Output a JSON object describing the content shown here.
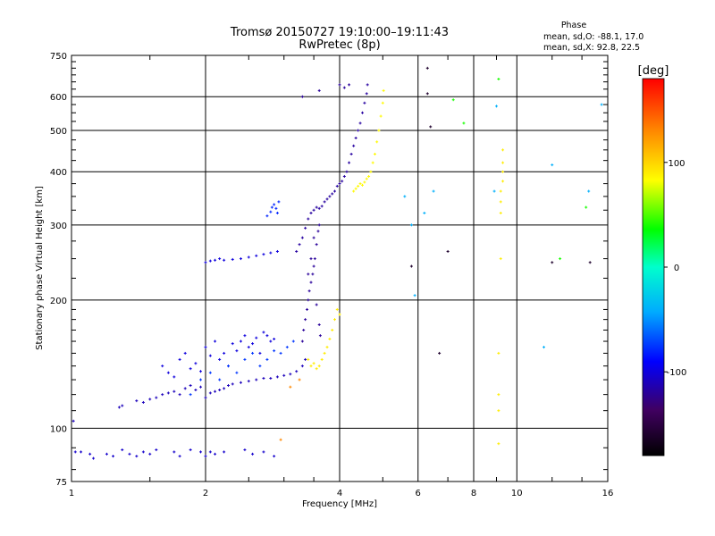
{
  "chart_data": {
    "type": "scatter",
    "title": "Tromsø 20150727 19:10:00–19:11:43",
    "subtitle": "RwPretec (8p)",
    "xlabel": "Frequency [MHz]",
    "ylabel": "Stationary phase Virtual Height [km]",
    "x_scale": "log",
    "y_scale": "log",
    "xlim": [
      1,
      16
    ],
    "ylim": [
      75,
      750
    ],
    "x_ticks": [
      1,
      2,
      4,
      6,
      8,
      10,
      16
    ],
    "y_ticks": [
      75,
      100,
      200,
      300,
      400,
      500,
      600,
      750
    ],
    "grid": true,
    "phase_stats": {
      "heading": "Phase",
      "line_o": "mean, sd,O: -88.1, 17.0",
      "line_x": "mean, sd,X:  92.8, 22.5"
    },
    "colorbar": {
      "label": "[deg]",
      "ticks": [
        "100",
        "0",
        "-100"
      ],
      "tick_values": [
        100,
        0,
        -100
      ],
      "range": [
        -180,
        180
      ]
    },
    "series": [
      {
        "phase_deg": -105,
        "points": [
          [
            1.02,
            88
          ],
          [
            1.05,
            88
          ],
          [
            1.1,
            87
          ],
          [
            1.12,
            85
          ],
          [
            1.2,
            87
          ],
          [
            1.24,
            86
          ],
          [
            1.3,
            89
          ],
          [
            1.35,
            87
          ],
          [
            1.4,
            86
          ],
          [
            1.45,
            88
          ],
          [
            1.5,
            87
          ],
          [
            1.55,
            89
          ],
          [
            1.7,
            88
          ],
          [
            1.75,
            86
          ],
          [
            1.85,
            89
          ],
          [
            1.95,
            88
          ],
          [
            2.0,
            86
          ],
          [
            2.05,
            88
          ],
          [
            2.1,
            87
          ],
          [
            2.2,
            88
          ],
          [
            2.45,
            89
          ],
          [
            2.55,
            87
          ],
          [
            2.7,
            88
          ],
          [
            2.85,
            86
          ]
        ]
      },
      {
        "phase_deg": -110,
        "points": [
          [
            1.01,
            104
          ],
          [
            1.28,
            112
          ],
          [
            1.3,
            113
          ],
          [
            1.4,
            116
          ],
          [
            1.45,
            115
          ],
          [
            1.5,
            117
          ],
          [
            1.55,
            118
          ],
          [
            1.6,
            120
          ],
          [
            1.65,
            121
          ],
          [
            1.7,
            122
          ],
          [
            1.75,
            120
          ],
          [
            1.8,
            124
          ],
          [
            1.85,
            126
          ],
          [
            1.9,
            123
          ],
          [
            1.95,
            125
          ],
          [
            2.0,
            118
          ],
          [
            2.05,
            121
          ],
          [
            2.1,
            122
          ],
          [
            2.15,
            123
          ],
          [
            2.2,
            124
          ],
          [
            2.25,
            126
          ],
          [
            2.3,
            127
          ],
          [
            2.4,
            128
          ],
          [
            2.5,
            129
          ],
          [
            2.6,
            130
          ],
          [
            2.7,
            131
          ],
          [
            2.8,
            131
          ],
          [
            2.9,
            132
          ],
          [
            3.0,
            133
          ],
          [
            3.1,
            134
          ],
          [
            3.2,
            136
          ],
          [
            3.3,
            140
          ],
          [
            3.35,
            145
          ]
        ]
      },
      {
        "phase_deg": -100,
        "points": [
          [
            1.6,
            140
          ],
          [
            1.65,
            135
          ],
          [
            1.7,
            132
          ],
          [
            1.75,
            145
          ],
          [
            1.8,
            150
          ],
          [
            1.85,
            138
          ],
          [
            1.9,
            142
          ],
          [
            1.95,
            136
          ],
          [
            2.0,
            155
          ],
          [
            2.05,
            148
          ],
          [
            2.1,
            160
          ],
          [
            2.15,
            145
          ],
          [
            2.2,
            150
          ],
          [
            2.25,
            140
          ],
          [
            2.3,
            158
          ],
          [
            2.35,
            152
          ],
          [
            2.4,
            160
          ],
          [
            2.45,
            165
          ],
          [
            2.5,
            155
          ],
          [
            2.55,
            158
          ],
          [
            2.6,
            163
          ],
          [
            2.65,
            150
          ],
          [
            2.7,
            168
          ],
          [
            2.75,
            165
          ],
          [
            2.8,
            160
          ],
          [
            2.85,
            162
          ]
        ]
      },
      {
        "phase_deg": -75,
        "points": [
          [
            1.85,
            120
          ],
          [
            1.95,
            130
          ],
          [
            2.05,
            135
          ],
          [
            2.15,
            130
          ],
          [
            2.25,
            140
          ],
          [
            2.35,
            135
          ],
          [
            2.45,
            145
          ],
          [
            2.55,
            150
          ],
          [
            2.65,
            140
          ],
          [
            2.75,
            145
          ],
          [
            2.85,
            152
          ],
          [
            2.95,
            150
          ],
          [
            3.05,
            155
          ],
          [
            3.15,
            160
          ]
        ]
      },
      {
        "phase_deg": -100,
        "points": [
          [
            2.0,
            245
          ],
          [
            2.05,
            247
          ],
          [
            2.1,
            248
          ],
          [
            2.15,
            250
          ],
          [
            2.2,
            248
          ],
          [
            2.3,
            249
          ],
          [
            2.4,
            250
          ],
          [
            2.5,
            252
          ],
          [
            2.6,
            254
          ],
          [
            2.7,
            256
          ],
          [
            2.8,
            258
          ],
          [
            2.9,
            260
          ]
        ]
      },
      {
        "phase_deg": -80,
        "points": [
          [
            2.75,
            315
          ],
          [
            2.8,
            322
          ],
          [
            2.82,
            330
          ],
          [
            2.85,
            335
          ],
          [
            2.88,
            328
          ],
          [
            2.9,
            320
          ],
          [
            2.92,
            340
          ]
        ]
      },
      {
        "phase_deg": -118,
        "points": [
          [
            3.2,
            260
          ],
          [
            3.25,
            270
          ],
          [
            3.3,
            280
          ],
          [
            3.35,
            295
          ],
          [
            3.4,
            310
          ],
          [
            3.45,
            320
          ],
          [
            3.5,
            325
          ],
          [
            3.55,
            330
          ],
          [
            3.6,
            328
          ],
          [
            3.65,
            332
          ],
          [
            3.7,
            340
          ],
          [
            3.75,
            345
          ],
          [
            3.8,
            350
          ],
          [
            3.85,
            355
          ],
          [
            3.9,
            360
          ],
          [
            3.95,
            370
          ],
          [
            4.0,
            375
          ],
          [
            4.05,
            380
          ],
          [
            4.1,
            390
          ],
          [
            4.15,
            400
          ],
          [
            4.2,
            420
          ],
          [
            4.25,
            440
          ],
          [
            4.3,
            460
          ],
          [
            4.35,
            480
          ],
          [
            4.4,
            500
          ],
          [
            4.45,
            520
          ],
          [
            4.5,
            550
          ],
          [
            4.55,
            580
          ],
          [
            4.6,
            610
          ],
          [
            4.62,
            640
          ]
        ]
      },
      {
        "phase_deg": -120,
        "points": [
          [
            3.3,
            160
          ],
          [
            3.32,
            170
          ],
          [
            3.35,
            180
          ],
          [
            3.38,
            190
          ],
          [
            3.4,
            200
          ],
          [
            3.42,
            210
          ],
          [
            3.45,
            220
          ],
          [
            3.48,
            230
          ],
          [
            3.5,
            240
          ],
          [
            3.52,
            250
          ],
          [
            3.55,
            270
          ],
          [
            3.58,
            290
          ],
          [
            3.6,
            300
          ],
          [
            3.4,
            230
          ],
          [
            3.45,
            250
          ],
          [
            3.5,
            280
          ],
          [
            3.55,
            195
          ],
          [
            3.6,
            175
          ],
          [
            3.62,
            165
          ],
          [
            3.3,
            600
          ],
          [
            3.6,
            620
          ],
          [
            4.0,
            640
          ],
          [
            4.1,
            630
          ],
          [
            4.2,
            640
          ]
        ]
      },
      {
        "phase_deg": 90,
        "points": [
          [
            3.4,
            145
          ],
          [
            3.45,
            140
          ],
          [
            3.5,
            142
          ],
          [
            3.55,
            138
          ],
          [
            3.6,
            140
          ],
          [
            3.65,
            145
          ],
          [
            3.7,
            150
          ],
          [
            3.75,
            155
          ],
          [
            3.8,
            162
          ],
          [
            3.85,
            170
          ],
          [
            3.9,
            180
          ],
          [
            3.95,
            190
          ],
          [
            4.0,
            185
          ]
        ]
      },
      {
        "phase_deg": 85,
        "points": [
          [
            4.3,
            360
          ],
          [
            4.35,
            365
          ],
          [
            4.4,
            370
          ],
          [
            4.45,
            375
          ],
          [
            4.5,
            372
          ],
          [
            4.55,
            378
          ],
          [
            4.6,
            385
          ],
          [
            4.65,
            390
          ],
          [
            4.7,
            400
          ],
          [
            4.75,
            420
          ],
          [
            4.8,
            440
          ],
          [
            4.85,
            470
          ],
          [
            4.9,
            500
          ],
          [
            4.95,
            540
          ],
          [
            5.0,
            580
          ],
          [
            5.02,
            620
          ]
        ]
      },
      {
        "phase_deg": 90,
        "points": [
          [
            9.3,
            450
          ],
          [
            9.3,
            420
          ],
          [
            9.3,
            400
          ],
          [
            9.3,
            380
          ],
          [
            9.2,
            360
          ],
          [
            9.2,
            340
          ],
          [
            9.2,
            320
          ],
          [
            9.2,
            250
          ],
          [
            9.1,
            92
          ],
          [
            9.1,
            110
          ],
          [
            9.1,
            120
          ],
          [
            9.1,
            150
          ]
        ]
      },
      {
        "phase_deg": -40,
        "points": [
          [
            5.6,
            350
          ],
          [
            5.8,
            300
          ],
          [
            5.9,
            205
          ],
          [
            6.2,
            320
          ],
          [
            6.5,
            360
          ],
          [
            8.9,
            360
          ],
          [
            9.0,
            570
          ],
          [
            11.5,
            155
          ],
          [
            12.0,
            415
          ],
          [
            14.5,
            360
          ],
          [
            15.5,
            575
          ]
        ]
      },
      {
        "phase_deg": -160,
        "points": [
          [
            5.8,
            240
          ],
          [
            6.3,
            700
          ],
          [
            6.3,
            610
          ],
          [
            6.4,
            510
          ],
          [
            6.7,
            150
          ],
          [
            7.0,
            260
          ],
          [
            12.0,
            245
          ],
          [
            14.6,
            245
          ]
        ]
      },
      {
        "phase_deg": 40,
        "points": [
          [
            7.2,
            590
          ],
          [
            7.6,
            520
          ],
          [
            9.1,
            660
          ],
          [
            12.5,
            250
          ],
          [
            14.3,
            330
          ]
        ]
      },
      {
        "phase_deg": 130,
        "points": [
          [
            2.95,
            94
          ],
          [
            3.1,
            125
          ],
          [
            3.25,
            130
          ]
        ]
      }
    ]
  }
}
